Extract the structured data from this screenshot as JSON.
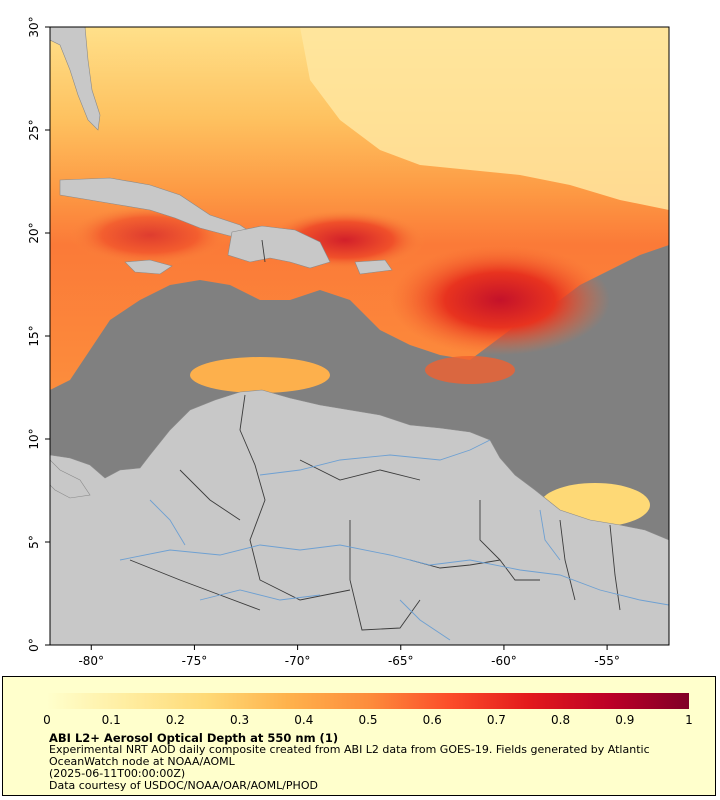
{
  "map": {
    "lon_range": [
      -82,
      -52
    ],
    "lat_range": [
      0,
      30
    ],
    "lon_ticks": [
      "-80°",
      "-75°",
      "-70°",
      "-65°",
      "-60°",
      "-55°"
    ],
    "lon_tick_values": [
      -80,
      -75,
      -70,
      -65,
      -60,
      -55
    ],
    "lat_ticks": [
      "0°",
      "5°",
      "10°",
      "15°",
      "20°",
      "25°",
      "30°"
    ],
    "lat_tick_values": [
      0,
      5,
      10,
      15,
      20,
      25,
      30
    ],
    "colors": {
      "no_data": "#808080",
      "land": "#c8c8c8",
      "rivers": "#6ea0d2",
      "borders": "#3c3c3c"
    }
  },
  "colorbar": {
    "labels": [
      "0",
      "0.1",
      "0.2",
      "0.3",
      "0.4",
      "0.5",
      "0.6",
      "0.7",
      "0.8",
      "0.9",
      "1"
    ],
    "range": [
      0,
      1
    ],
    "colors": [
      "#ffffcc",
      "#ffeda0",
      "#fed976",
      "#feb24c",
      "#fd8d3c",
      "#fc4e2a",
      "#e31a1c",
      "#bd0026",
      "#800026"
    ]
  },
  "legend": {
    "title": "ABI L2+ Aerosol Optical Depth at 550 nm (1)",
    "description": "Experimental NRT AOD daily composite created from ABI L2 data from GOES-19. Fields generated by Atlantic OceanWatch node at NOAA/AOML",
    "timestamp": "(2025-06-11T00:00:00Z)",
    "credit": "Data courtesy of USDOC/NOAA/OAR/AOML/PHOD"
  }
}
